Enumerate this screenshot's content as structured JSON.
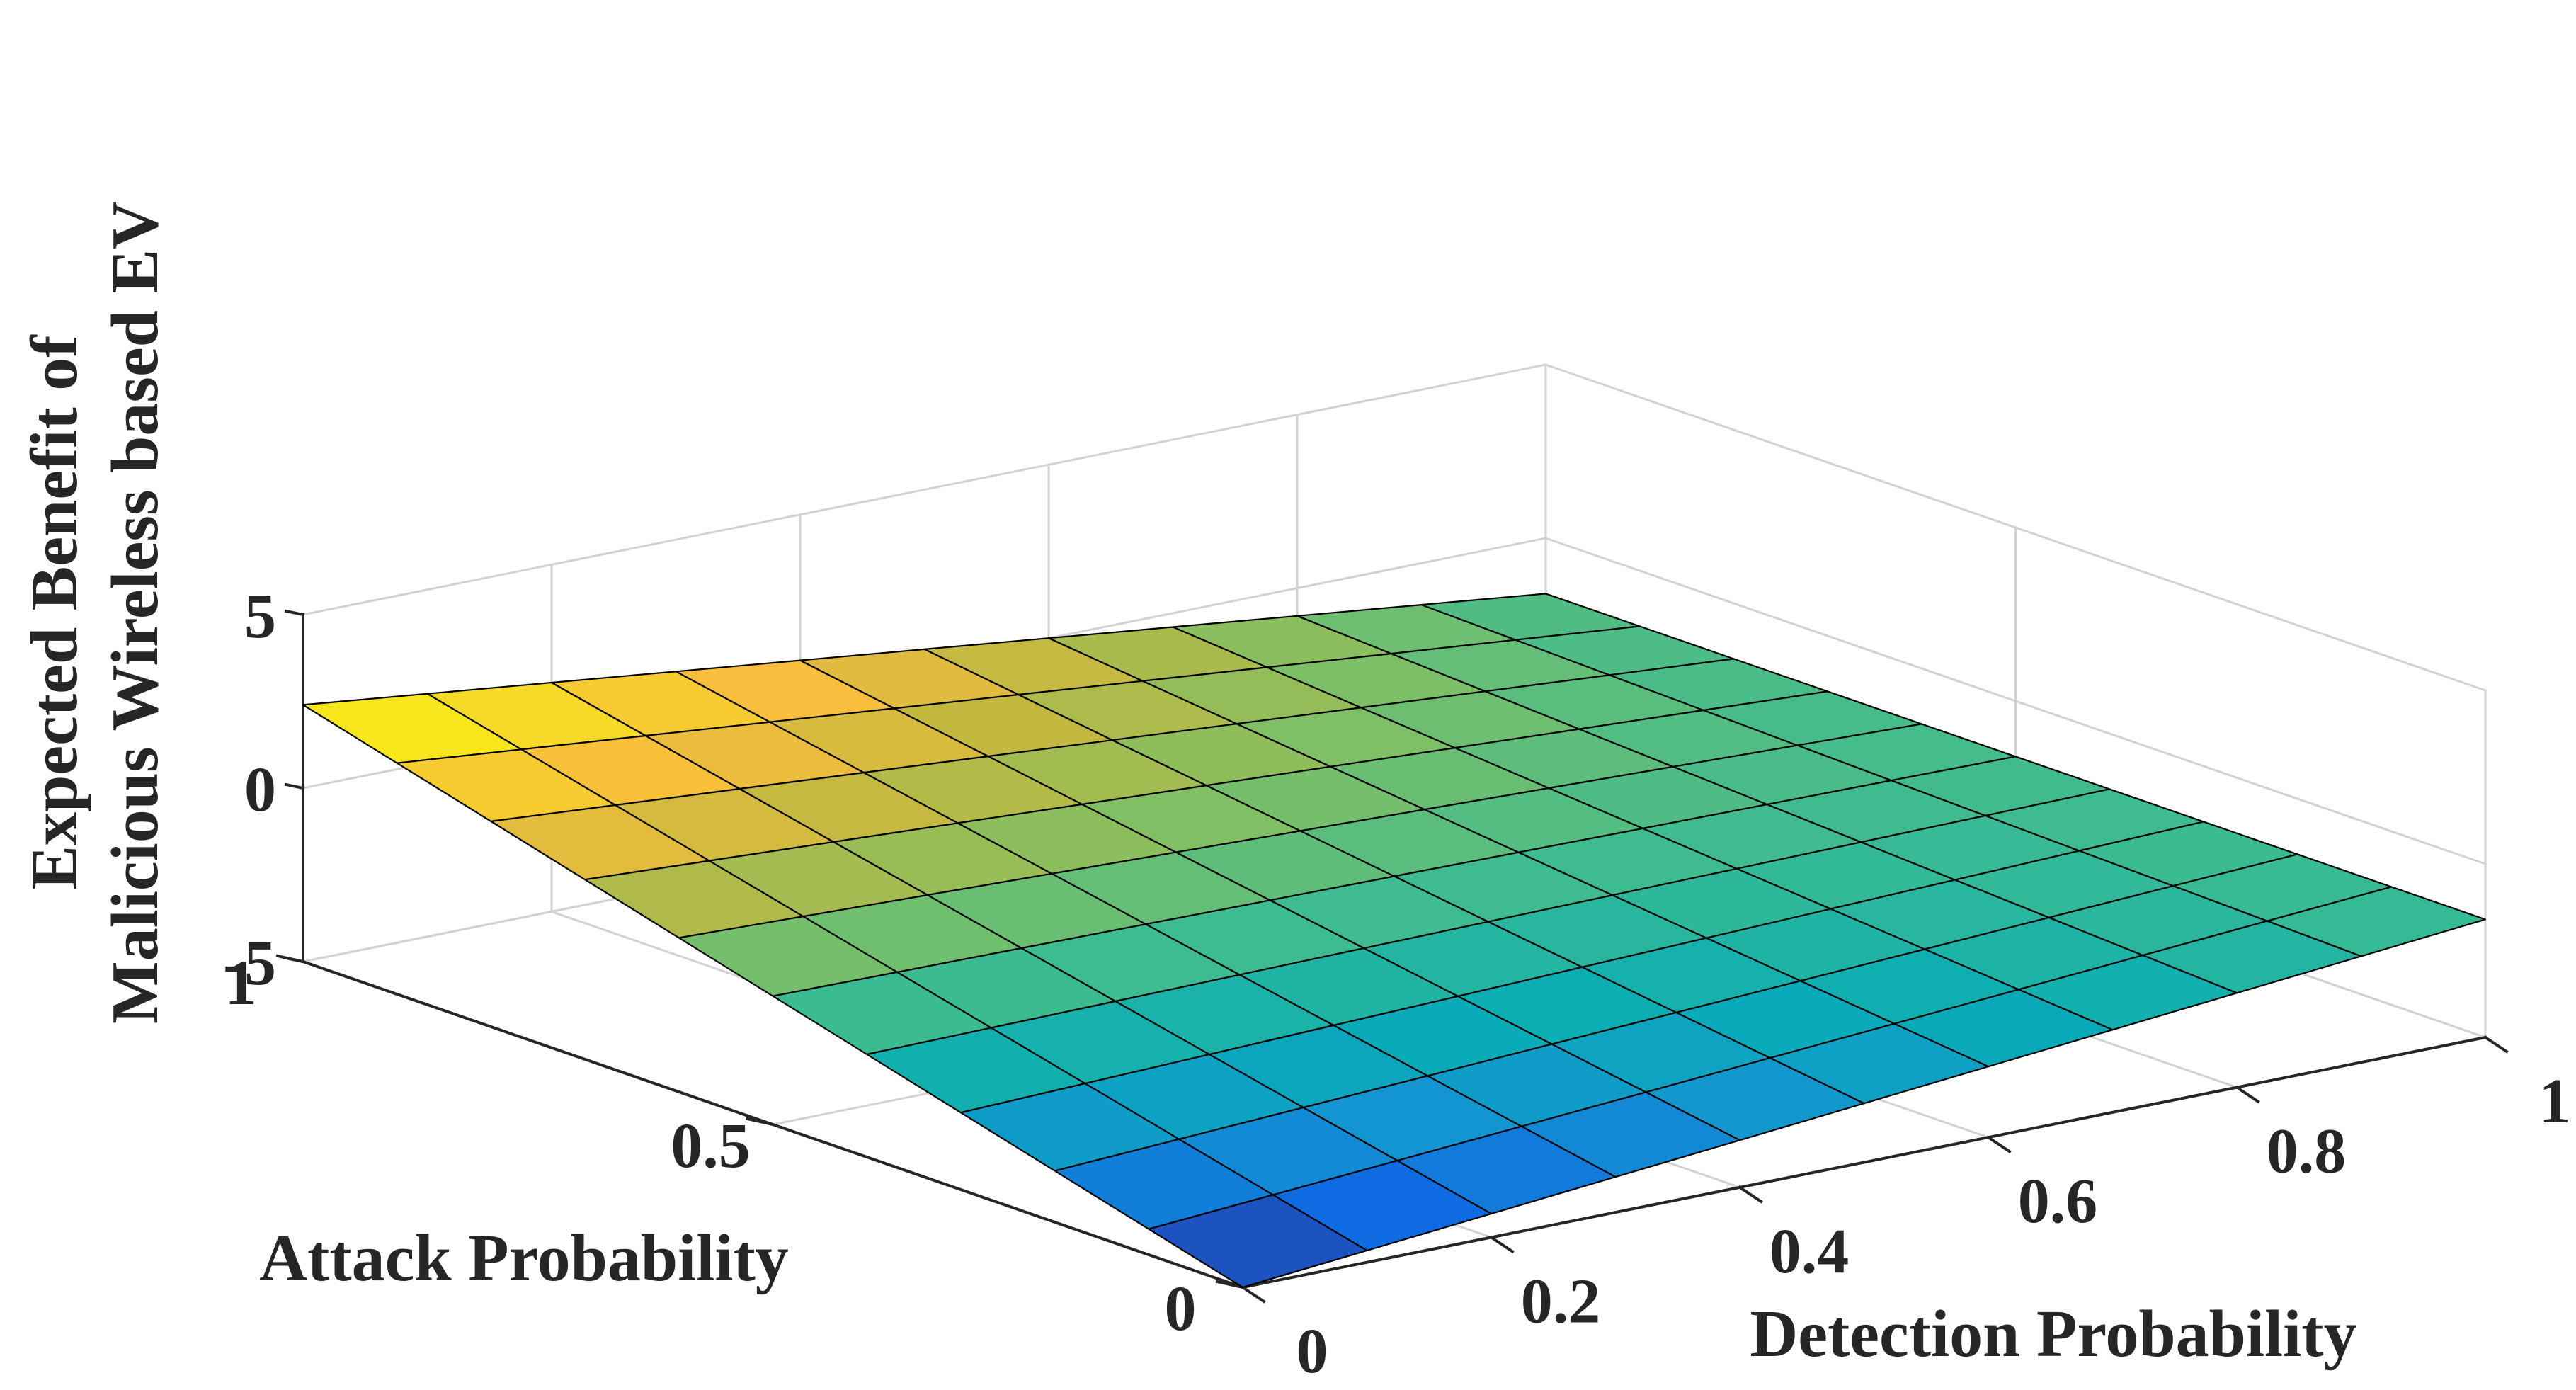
{
  "chart_data": {
    "type": "surface",
    "title": "",
    "xlabel": "Detection Probability",
    "ylabel": "Attack Probability",
    "zlabel_lines": [
      "Expected Benefit of",
      "Malicious Wireless based EV"
    ],
    "xlim": [
      0,
      1
    ],
    "ylim": [
      0,
      1
    ],
    "zlim": [
      -5,
      5
    ],
    "x_ticks": [
      "0",
      "0.2",
      "0.4",
      "0.6",
      "0.8",
      "1"
    ],
    "x_tick_values": [
      0,
      0.2,
      0.4,
      0.6,
      0.8,
      1
    ],
    "y_ticks": [
      "0",
      "0.5",
      "1"
    ],
    "y_tick_values": [
      0,
      0.5,
      1
    ],
    "z_ticks": [
      "-5",
      "0",
      "5"
    ],
    "z_tick_values": [
      -5,
      0,
      5
    ],
    "grid": true,
    "colormap": "parula",
    "grid_divisions": 10,
    "corner_values": {
      "x0_y1": 2.4,
      "x0_y0": -5.0,
      "x1_y0": -1.6,
      "x1_y1": -1.6
    },
    "colors": {
      "axis": "#262626",
      "grid": "#d2d2d2",
      "mesh": "#000000"
    }
  }
}
